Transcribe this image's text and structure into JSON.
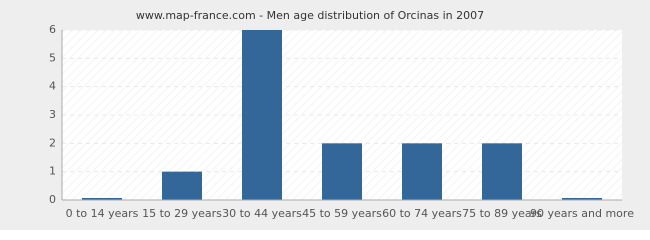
{
  "chart_data": {
    "type": "bar",
    "title": "www.map-france.com - Men age distribution of Orcinas in 2007",
    "categories": [
      "0 to 14 years",
      "15 to 29 years",
      "30 to 44 years",
      "45 to 59 years",
      "60 to 74 years",
      "75 to 89 years",
      "90 years and more"
    ],
    "values": [
      0,
      1,
      6,
      2,
      2,
      2,
      0
    ],
    "color": "#336699",
    "ylim": [
      0,
      6
    ],
    "yticks": [
      0,
      1,
      2,
      3,
      4,
      5,
      6
    ],
    "grid": true
  }
}
